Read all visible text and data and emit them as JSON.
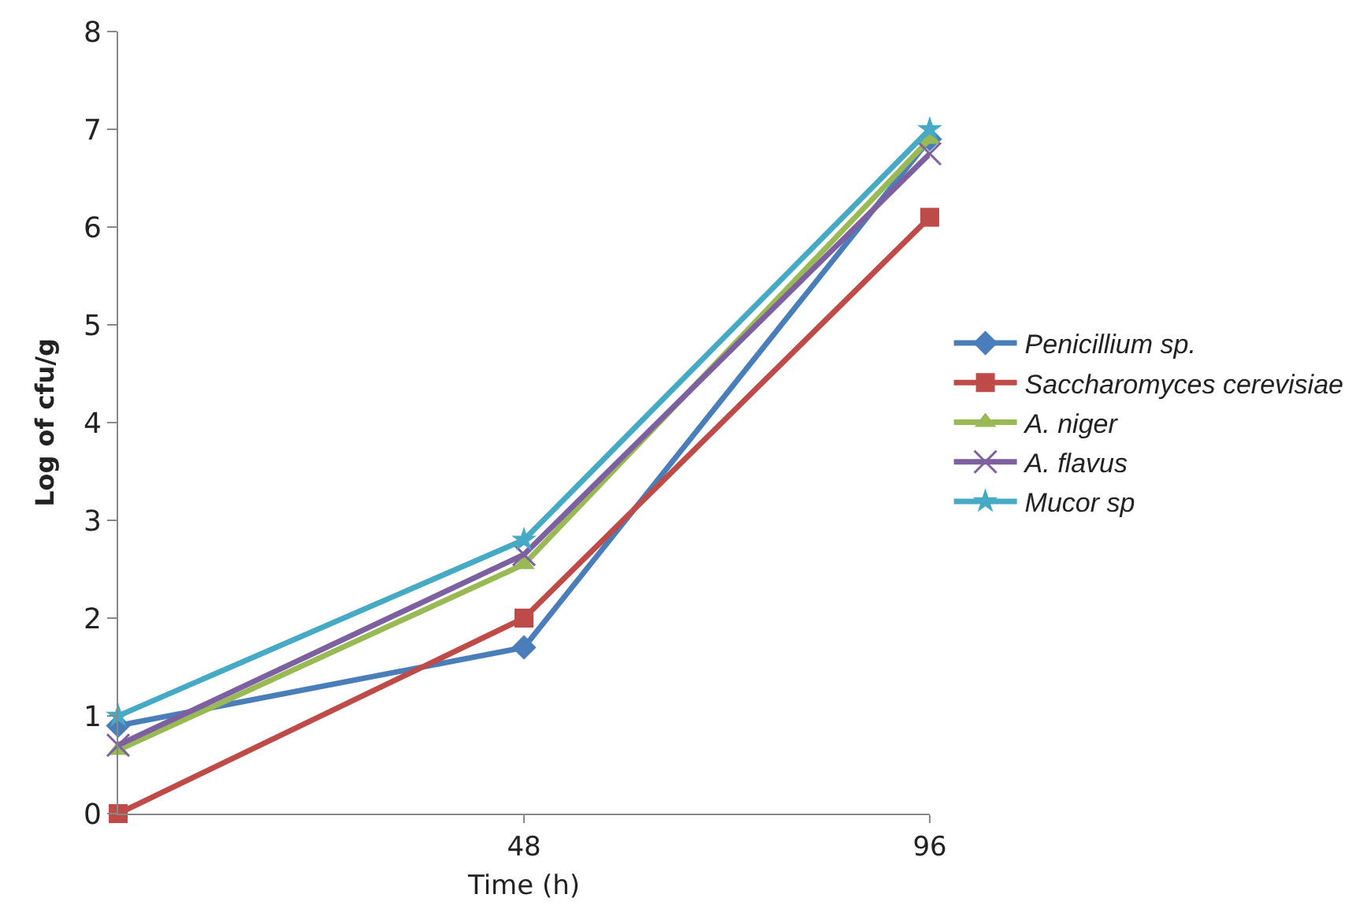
{
  "chart_data": {
    "type": "line",
    "xlabel": "Time (h)",
    "ylabel": "Log of cfu/g",
    "categories": [
      null,
      "48",
      "96"
    ],
    "ylim": [
      0,
      8
    ],
    "yticks": [
      0,
      1,
      2,
      3,
      4,
      5,
      6,
      7,
      8
    ],
    "grid": false,
    "legend": "right",
    "series": [
      {
        "name": "Penicillium sp.",
        "color": "#4a7ebb",
        "marker": "diamond",
        "values": [
          0.9,
          1.7,
          6.9
        ]
      },
      {
        "name": "Saccharomyces cerevisiae",
        "color": "#be4b48",
        "marker": "square",
        "values": [
          0,
          2.0,
          6.1
        ]
      },
      {
        "name": "A. niger",
        "color": "#98b954",
        "marker": "triangle",
        "values": [
          0.65,
          2.55,
          6.9
        ]
      },
      {
        "name": "A. flavus",
        "color": "#7d60a0",
        "marker": "cross",
        "values": [
          0.7,
          2.65,
          6.75
        ]
      },
      {
        "name": "Mucor sp",
        "color": "#46aac5",
        "marker": "star",
        "values": [
          1.0,
          2.8,
          7.0
        ]
      }
    ]
  }
}
